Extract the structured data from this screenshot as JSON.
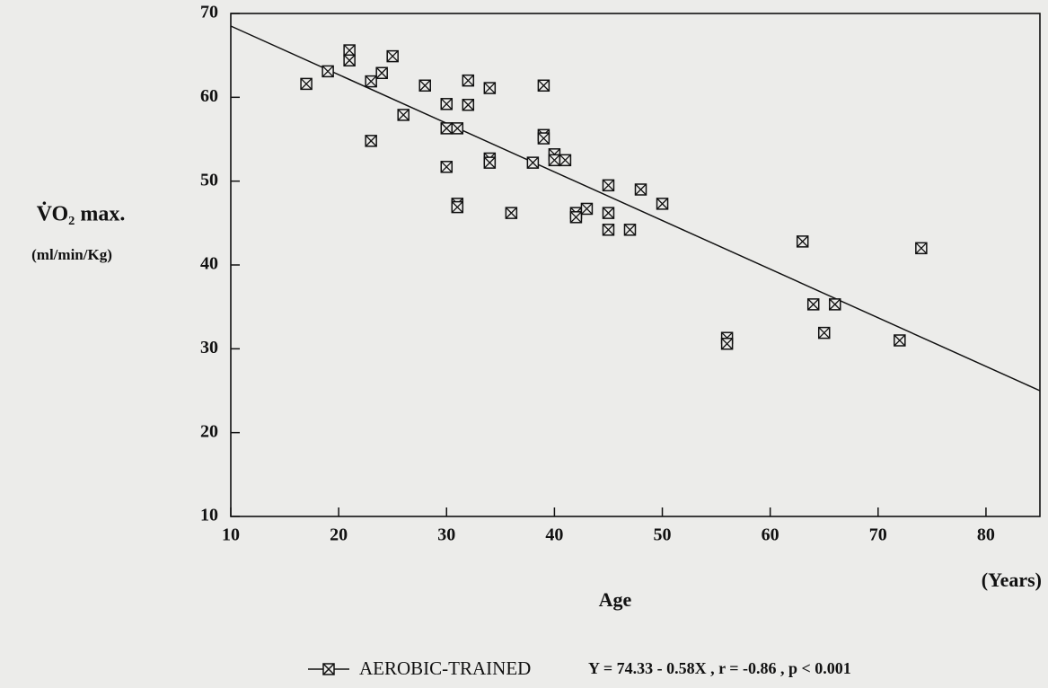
{
  "chart_data": {
    "type": "scatter",
    "y_label": "V̇O₂ max.",
    "y_units": "(ml/min/Kg)",
    "x_label": "Age",
    "x_units": "(Years)",
    "annotation": "Y = 74.33 - 0.58X , r = -0.86 , p < 0.001",
    "xlim": [
      10,
      85
    ],
    "ylim": [
      10,
      70
    ],
    "xticks": [
      10,
      20,
      30,
      40,
      50,
      60,
      70,
      80
    ],
    "yticks": [
      10,
      20,
      30,
      40,
      50,
      60,
      70
    ],
    "series": [
      {
        "name": "AEROBIC-TRAINED",
        "color": "#111111",
        "x": [
          17,
          19,
          21,
          21,
          23,
          23,
          24,
          25,
          26,
          28,
          30,
          30,
          30,
          31,
          31,
          31,
          32,
          32,
          34,
          34,
          34,
          36,
          38,
          39,
          39,
          39,
          40,
          40,
          41,
          42,
          42,
          43,
          45,
          45,
          45,
          47,
          48,
          50,
          56,
          56,
          63,
          64,
          65,
          66,
          72,
          74
        ],
        "values": [
          61.6,
          63.1,
          65.6,
          64.4,
          61.9,
          54.8,
          62.9,
          64.9,
          57.9,
          61.4,
          59.2,
          56.3,
          51.7,
          56.3,
          47.3,
          46.9,
          62.0,
          59.1,
          61.1,
          52.7,
          52.2,
          46.2,
          52.2,
          61.4,
          55.5,
          55.1,
          53.2,
          52.5,
          52.5,
          46.2,
          45.7,
          46.7,
          49.5,
          46.2,
          44.2,
          44.2,
          49.0,
          47.3,
          31.3,
          30.6,
          42.8,
          35.3,
          31.9,
          35.3,
          31.0,
          42.0
        ]
      }
    ],
    "trendline": {
      "x": [
        10,
        85
      ],
      "values": [
        68.5,
        25.0
      ]
    }
  }
}
